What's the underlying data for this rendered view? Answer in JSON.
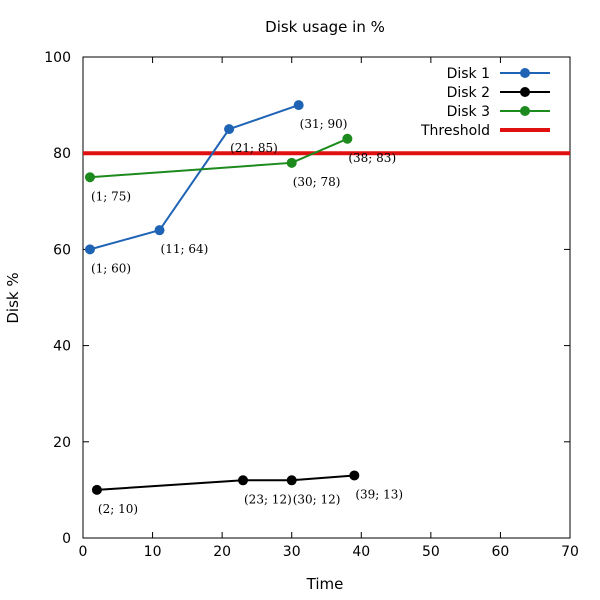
{
  "chart_data": {
    "type": "line",
    "title": "Disk usage in %",
    "xlabel": "Time",
    "ylabel": "Disk %",
    "xlim": [
      0,
      70
    ],
    "ylim": [
      0,
      100
    ],
    "xticks": [
      0,
      10,
      20,
      30,
      40,
      50,
      60,
      70
    ],
    "yticks": [
      0,
      20,
      40,
      60,
      80,
      100
    ],
    "grid": false,
    "legend_position": "top-right",
    "series": [
      {
        "name": "Disk 1",
        "color": "#1f64b4",
        "points": [
          {
            "x": 1,
            "y": 60,
            "label": "(1; 60)"
          },
          {
            "x": 11,
            "y": 64,
            "label": "(11; 64)"
          },
          {
            "x": 21,
            "y": 85,
            "label": "(21; 85)"
          },
          {
            "x": 31,
            "y": 90,
            "label": "(31; 90)"
          }
        ]
      },
      {
        "name": "Disk 2",
        "color": "#000000",
        "points": [
          {
            "x": 2,
            "y": 10,
            "label": "(2; 10)"
          },
          {
            "x": 23,
            "y": 12,
            "label": "(23; 12)"
          },
          {
            "x": 30,
            "y": 12,
            "label": "(30; 12)"
          },
          {
            "x": 39,
            "y": 13,
            "label": "(39; 13)"
          }
        ]
      },
      {
        "name": "Disk 3",
        "color": "#1c8a1c",
        "points": [
          {
            "x": 1,
            "y": 75,
            "label": "(1; 75)"
          },
          {
            "x": 30,
            "y": 78,
            "label": "(30; 78)"
          },
          {
            "x": 38,
            "y": 83,
            "label": "(38; 83)"
          }
        ]
      }
    ],
    "threshold": {
      "name": "Threshold",
      "y": 80,
      "color": "#e01010"
    }
  }
}
